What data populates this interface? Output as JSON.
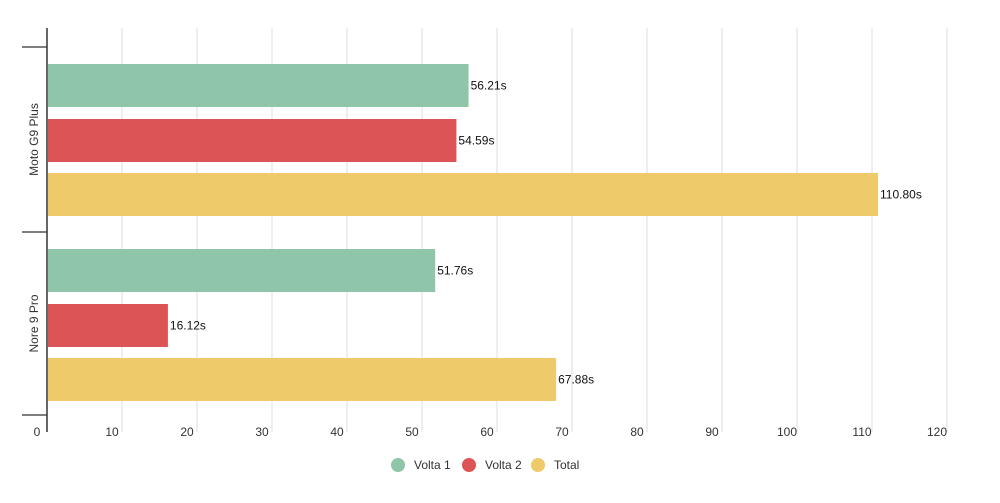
{
  "chart_data": {
    "type": "bar",
    "orientation": "horizontal",
    "title": "",
    "xlabel": "",
    "ylabel": "",
    "categories": [
      "Moto G9 Plus",
      "Nore 9 Pro"
    ],
    "series": [
      {
        "name": "Volta 1",
        "color": "#8fc5a9",
        "values": [
          56.21,
          51.76
        ],
        "labels": [
          "56.21s",
          "51.76s"
        ]
      },
      {
        "name": "Volta 2",
        "color": "#dc5456",
        "values": [
          54.59,
          16.12
        ],
        "labels": [
          "54.59s",
          "16.12s"
        ]
      },
      {
        "name": "Total",
        "color": "#eeca6b",
        "values": [
          110.8,
          67.88
        ],
        "labels": [
          "110.80s",
          "67.88s"
        ]
      }
    ],
    "xlim": [
      0,
      120
    ],
    "xticks": [
      0,
      10,
      20,
      30,
      40,
      50,
      60,
      70,
      80,
      90,
      100,
      110,
      120
    ],
    "grid": true,
    "legend_position": "bottom-center"
  }
}
